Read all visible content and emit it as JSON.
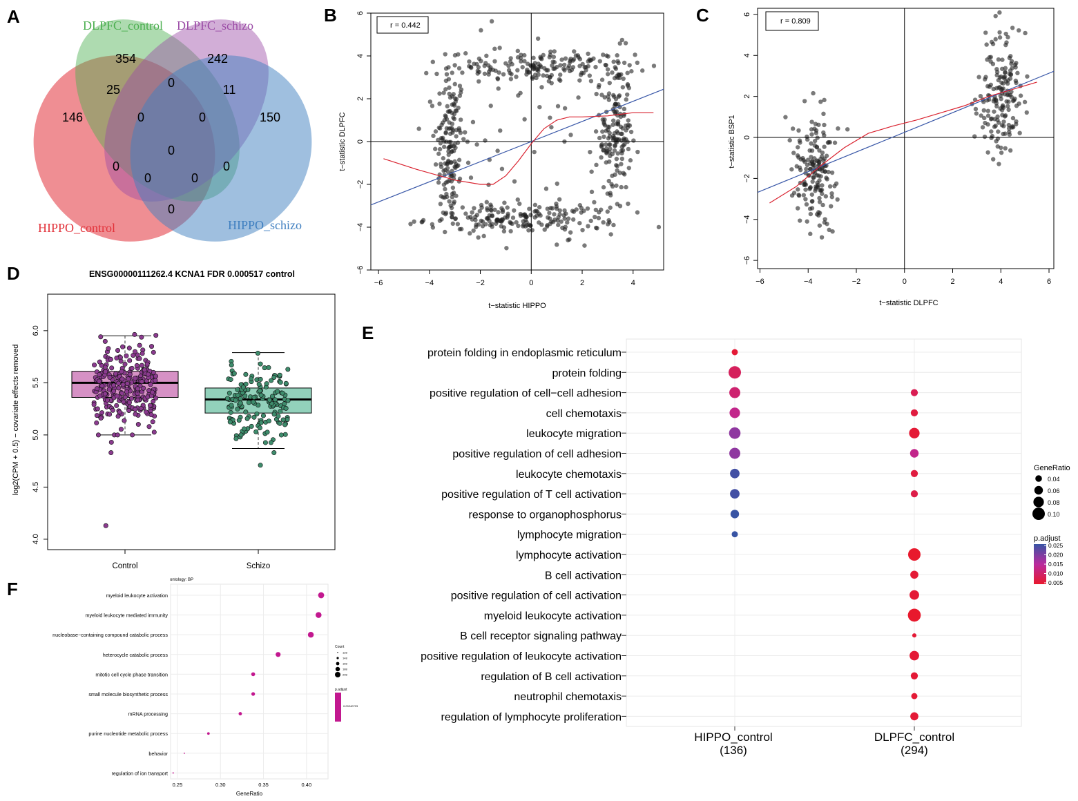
{
  "panel_labels": [
    "A",
    "B",
    "C",
    "D",
    "E",
    "F"
  ],
  "chart_data": [
    {
      "panel": "A",
      "type": "venn",
      "sets": [
        {
          "name": "DLPFC_control",
          "color": "#4caf50"
        },
        {
          "name": "DLPFC_schizo",
          "color": "#9b4ca6"
        },
        {
          "name": "HIPPO_control",
          "color": "#e2323a"
        },
        {
          "name": "HIPPO_schizo",
          "color": "#3f7fc0"
        }
      ],
      "regions": [
        {
          "sets": [
            "DLPFC_control"
          ],
          "value": 354
        },
        {
          "sets": [
            "DLPFC_schizo"
          ],
          "value": 242
        },
        {
          "sets": [
            "HIPPO_control"
          ],
          "value": 146
        },
        {
          "sets": [
            "HIPPO_schizo"
          ],
          "value": 150
        },
        {
          "sets": [
            "DLPFC_control",
            "HIPPO_control"
          ],
          "value": 25
        },
        {
          "sets": [
            "DLPFC_control",
            "DLPFC_schizo"
          ],
          "value": 0
        },
        {
          "sets": [
            "DLPFC_schizo",
            "HIPPO_schizo"
          ],
          "value": 11
        },
        {
          "sets": [
            "DLPFC_control",
            "DLPFC_schizo",
            "HIPPO_control"
          ],
          "value": 0
        },
        {
          "sets": [
            "DLPFC_control",
            "DLPFC_schizo",
            "HIPPO_schizo"
          ],
          "value": 0
        },
        {
          "sets": [
            "DLPFC_control",
            "DLPFC_schizo",
            "HIPPO_control",
            "HIPPO_schizo"
          ],
          "value": 0
        },
        {
          "sets": [
            "DLPFC_control",
            "HIPPO_control",
            "HIPPO_schizo"
          ],
          "value": 0
        },
        {
          "sets": [
            "DLPFC_schizo",
            "HIPPO_control",
            "HIPPO_schizo"
          ],
          "value": 0
        },
        {
          "sets": [
            "DLPFC_schizo",
            "HIPPO_control"
          ],
          "value": 0
        },
        {
          "sets": [
            "DLPFC_control",
            "HIPPO_schizo"
          ],
          "value": 0
        },
        {
          "sets": [
            "HIPPO_control",
            "HIPPO_schizo"
          ],
          "value": 0
        }
      ]
    },
    {
      "panel": "B",
      "type": "scatter",
      "xlabel": "t−statistic HIPPO",
      "ylabel": "t−statistic DLPFC",
      "annotation": "r = 0.442",
      "xlim": [
        -6.3,
        5.2
      ],
      "ylim": [
        -6,
        6
      ],
      "xticks": [
        -6,
        -4,
        -2,
        0,
        2,
        4
      ],
      "yticks": [
        -6,
        -4,
        -2,
        0,
        2,
        4,
        6
      ],
      "fit_line": {
        "intercept": 0.0,
        "slope": 0.47
      },
      "loess": [
        [
          -5.8,
          -0.8
        ],
        [
          -4.5,
          -1.3
        ],
        [
          -3,
          -1.8
        ],
        [
          -2,
          -2.0
        ],
        [
          -1.5,
          -2.0
        ],
        [
          -1,
          -1.6
        ],
        [
          -0.5,
          -0.9
        ],
        [
          0,
          -0.1
        ],
        [
          0.5,
          0.6
        ],
        [
          1,
          1.0
        ],
        [
          1.5,
          1.15
        ],
        [
          2,
          1.15
        ],
        [
          3,
          1.2
        ],
        [
          4,
          1.35
        ],
        [
          4.8,
          1.35
        ]
      ],
      "point_groups": [
        {
          "cx": -3.2,
          "sx": 0.3,
          "cy": -0.3,
          "sy": 1.9,
          "n": 150
        },
        {
          "cx": 3.3,
          "sx": 0.3,
          "cy": 0.4,
          "sy": 1.8,
          "n": 160
        },
        {
          "cx": -0.3,
          "sx": 1.9,
          "cy": -3.6,
          "sy": 0.35,
          "n": 190
        },
        {
          "cx": 0.4,
          "sx": 1.8,
          "cy": 3.5,
          "sy": 0.35,
          "n": 180
        },
        {
          "cx": 0.0,
          "sx": 3.0,
          "cy": 0.0,
          "sy": 3.0,
          "n": 60
        }
      ]
    },
    {
      "panel": "C",
      "type": "scatter",
      "xlabel": "t−statistic DLPFC",
      "ylabel": "t−statistic BSP1",
      "annotation": "r = 0.809",
      "xlim": [
        -6.1,
        6.2
      ],
      "ylim": [
        -6.4,
        6.3
      ],
      "xticks": [
        -6,
        -4,
        -2,
        0,
        2,
        4,
        6
      ],
      "yticks": [
        -6,
        -4,
        -2,
        0,
        2,
        4,
        6
      ],
      "fit_line": {
        "intercept": 0.25,
        "slope": 0.48
      },
      "loess": [
        [
          -5.6,
          -3.2
        ],
        [
          -4.5,
          -2.4
        ],
        [
          -3.5,
          -1.4
        ],
        [
          -2.5,
          -0.5
        ],
        [
          -1.5,
          0.2
        ],
        [
          -0.5,
          0.55
        ],
        [
          0.5,
          0.85
        ],
        [
          1.5,
          1.2
        ],
        [
          2.5,
          1.55
        ],
        [
          3.5,
          2.0
        ],
        [
          4.5,
          2.35
        ],
        [
          5.5,
          2.7
        ]
      ],
      "point_groups": [
        {
          "cx": -3.7,
          "sx": 0.45,
          "cy": -1.6,
          "sy": 1.5,
          "n": 170
        },
        {
          "cx": 4.0,
          "sx": 0.5,
          "cy": 2.2,
          "sy": 1.6,
          "n": 170
        }
      ]
    },
    {
      "panel": "D",
      "type": "box",
      "title": "ENSG00000111262.4 KCNA1 FDR 0.000517 control",
      "ylabel": "log2(CPM + 0.5) − covariate effects removed",
      "ylim": [
        3.9,
        6.35
      ],
      "yticks": [
        4.0,
        4.5,
        5.0,
        5.5,
        6.0
      ],
      "categories": [
        "Control",
        "Schizo"
      ],
      "boxes": [
        {
          "name": "Control",
          "q1": 5.36,
          "median": 5.5,
          "q3": 5.61,
          "whisker_low": 5.0,
          "whisker_high": 5.95,
          "fill": "#d691c5",
          "point_color": "#8b3b8f",
          "n": 280,
          "outliers": [
            4.13,
            4.83,
            4.93
          ]
        },
        {
          "name": "Schizo",
          "q1": 5.21,
          "median": 5.34,
          "q3": 5.45,
          "whisker_low": 4.87,
          "whisker_high": 5.79,
          "fill": "#92d1bb",
          "point_color": "#3e8c6c",
          "n": 160,
          "outliers": [
            4.71,
            4.83
          ]
        }
      ]
    },
    {
      "panel": "E",
      "type": "dotplot",
      "columns": [
        "HIPPO_control",
        "DLPFC_control"
      ],
      "column_counts": [
        "(136)",
        "(294)"
      ],
      "terms": [
        "protein folding in endoplasmic reticulum",
        "protein folding",
        "positive regulation of cell−cell adhesion",
        "cell chemotaxis",
        "leukocyte migration",
        "positive regulation of cell adhesion",
        "leukocyte chemotaxis",
        "positive regulation of T cell activation",
        "response to organophosphorus",
        "lymphocyte migration",
        "lymphocyte activation",
        "B cell activation",
        "positive regulation of cell activation",
        "myeloid leukocyte activation",
        "B cell receptor signaling pathway",
        "positive regulation of leukocyte activation",
        "regulation of B cell activation",
        "neutrophil chemotaxis",
        "regulation of lymphocyte proliferation"
      ],
      "points": [
        {
          "term": 0,
          "col": 0,
          "gene_ratio": 0.035,
          "p_adjust": 0.002
        },
        {
          "term": 1,
          "col": 0,
          "gene_ratio": 0.1,
          "p_adjust": 0.006
        },
        {
          "term": 2,
          "col": 0,
          "gene_ratio": 0.085,
          "p_adjust": 0.008
        },
        {
          "term": 3,
          "col": 0,
          "gene_ratio": 0.08,
          "p_adjust": 0.011
        },
        {
          "term": 4,
          "col": 0,
          "gene_ratio": 0.09,
          "p_adjust": 0.017
        },
        {
          "term": 5,
          "col": 0,
          "gene_ratio": 0.085,
          "p_adjust": 0.017
        },
        {
          "term": 6,
          "col": 0,
          "gene_ratio": 0.07,
          "p_adjust": 0.024
        },
        {
          "term": 7,
          "col": 0,
          "gene_ratio": 0.07,
          "p_adjust": 0.024
        },
        {
          "term": 8,
          "col": 0,
          "gene_ratio": 0.06,
          "p_adjust": 0.025
        },
        {
          "term": 9,
          "col": 0,
          "gene_ratio": 0.035,
          "p_adjust": 0.025
        },
        {
          "term": 2,
          "col": 1,
          "gene_ratio": 0.045,
          "p_adjust": 0.005
        },
        {
          "term": 3,
          "col": 1,
          "gene_ratio": 0.045,
          "p_adjust": 0.003
        },
        {
          "term": 4,
          "col": 1,
          "gene_ratio": 0.08,
          "p_adjust": 0.002
        },
        {
          "term": 5,
          "col": 1,
          "gene_ratio": 0.06,
          "p_adjust": 0.011
        },
        {
          "term": 6,
          "col": 1,
          "gene_ratio": 0.045,
          "p_adjust": 0.003
        },
        {
          "term": 7,
          "col": 1,
          "gene_ratio": 0.045,
          "p_adjust": 0.004
        },
        {
          "term": 10,
          "col": 1,
          "gene_ratio": 0.1,
          "p_adjust": 0.001
        },
        {
          "term": 11,
          "col": 1,
          "gene_ratio": 0.055,
          "p_adjust": 0.002
        },
        {
          "term": 12,
          "col": 1,
          "gene_ratio": 0.07,
          "p_adjust": 0.002
        },
        {
          "term": 13,
          "col": 1,
          "gene_ratio": 0.105,
          "p_adjust": 0.001
        },
        {
          "term": 14,
          "col": 1,
          "gene_ratio": 0.015,
          "p_adjust": 0.002
        },
        {
          "term": 15,
          "col": 1,
          "gene_ratio": 0.07,
          "p_adjust": 0.002
        },
        {
          "term": 16,
          "col": 1,
          "gene_ratio": 0.045,
          "p_adjust": 0.002
        },
        {
          "term": 17,
          "col": 1,
          "gene_ratio": 0.035,
          "p_adjust": 0.002
        },
        {
          "term": 18,
          "col": 1,
          "gene_ratio": 0.055,
          "p_adjust": 0.002
        }
      ],
      "size_legend_title": "GeneRatio",
      "size_legend": [
        0.04,
        0.06,
        0.08,
        0.1
      ],
      "size_legend_labels": [
        "0.04",
        "0.06",
        "0.08",
        "0.10"
      ],
      "color_legend_title": "p.adjust",
      "color_legend_ticks": [
        "0.025",
        "0.020",
        "0.015",
        "0.010",
        "0.005"
      ],
      "color_low": "#e8192d",
      "color_high": "#3854a4"
    },
    {
      "panel": "F",
      "type": "dotplot",
      "annotation": "ontology: BP",
      "xlabel": "GeneRatio",
      "xlim": [
        0.242,
        0.425
      ],
      "xticks": [
        0.25,
        0.3,
        0.35,
        0.4
      ],
      "xtick_labels": [
        "0.25",
        "0.30",
        "0.35",
        "0.40"
      ],
      "terms": [
        {
          "term": "myeloid leukocyte activation",
          "gene_ratio": 0.417,
          "count": 208
        },
        {
          "term": "myeloid leukocyte mediated immunity",
          "gene_ratio": 0.414,
          "count": 206
        },
        {
          "term": "nucleobase−containing compound catabolic process",
          "gene_ratio": 0.405,
          "count": 205
        },
        {
          "term": "heterocycle catabolic process",
          "gene_ratio": 0.367,
          "count": 190
        },
        {
          "term": "mitotic cell cycle phase transition",
          "gene_ratio": 0.338,
          "count": 172
        },
        {
          "term": "small molecule biosynthetic process",
          "gene_ratio": 0.338,
          "count": 168
        },
        {
          "term": "mRNA processing",
          "gene_ratio": 0.323,
          "count": 163
        },
        {
          "term": "purine nucleotide metabolic process",
          "gene_ratio": 0.286,
          "count": 150
        },
        {
          "term": "behavior",
          "gene_ratio": 0.258,
          "count": 128
        },
        {
          "term": "regulation of ion transport",
          "gene_ratio": 0.245,
          "count": 130
        }
      ],
      "count_legend_title": "Count",
      "count_legend": [
        "128",
        "148",
        "168",
        "188",
        "208"
      ],
      "color_legend_title": "p.adjust",
      "color_legend_value": "0.00240723",
      "point_color": "#c2188f"
    }
  ]
}
